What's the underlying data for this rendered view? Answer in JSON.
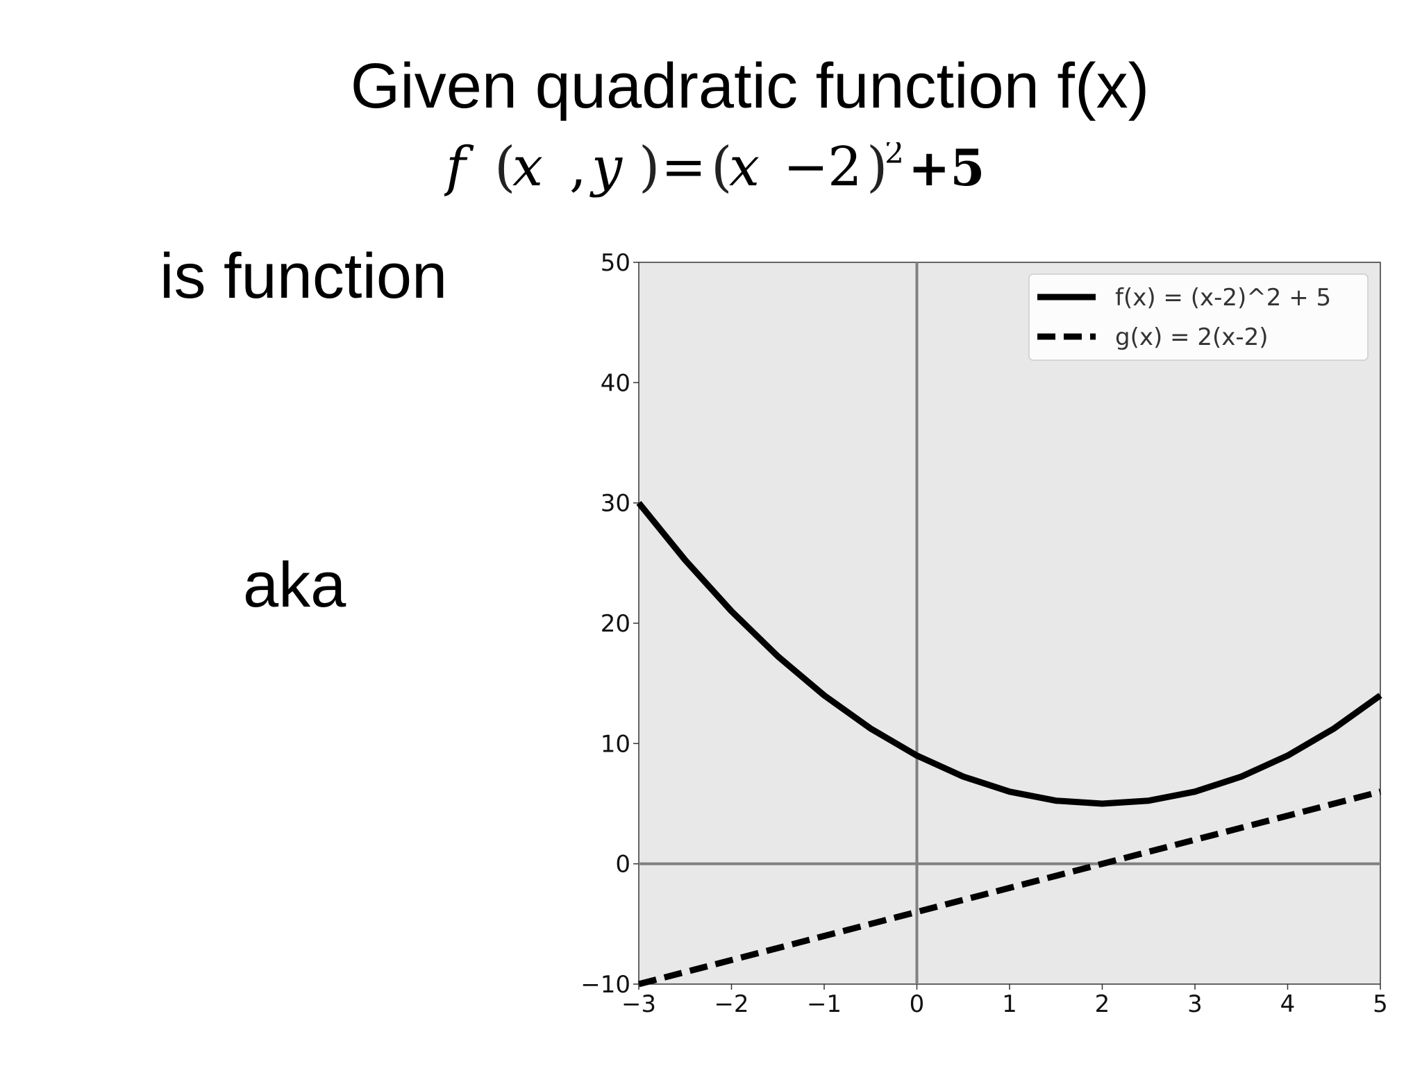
{
  "slide": {
    "title": "Given quadratic function f(x)",
    "equation": {
      "f": "f",
      "lparen1": "(",
      "x1": "x",
      "comma": ",",
      "y": "y",
      "rparen1": ")",
      "equals": "=",
      "lparen2": "(",
      "x2": "x",
      "minus": "−",
      "two": "2",
      "rparen2": ")",
      "exponent": "2",
      "plus_five": "+5"
    },
    "left_text_1": "is function",
    "left_text_2": "aka"
  },
  "chart_data": {
    "type": "line",
    "title": "",
    "xlabel": "",
    "ylabel": "",
    "xlim": [
      -3,
      5
    ],
    "ylim": [
      -10,
      50
    ],
    "x_ticks": [
      -3,
      -2,
      -1,
      0,
      1,
      2,
      3,
      4,
      5
    ],
    "x_tick_labels": [
      "−3",
      "−2",
      "−1",
      "0",
      "1",
      "2",
      "3",
      "4",
      "5"
    ],
    "y_ticks": [
      -10,
      0,
      10,
      20,
      30,
      40,
      50
    ],
    "y_tick_labels": [
      "−10",
      "0",
      "10",
      "20",
      "30",
      "40",
      "50"
    ],
    "grid": false,
    "background_color": "#e8e8e8",
    "zero_axes_color": "#808080",
    "legend_position": "top-right",
    "series": [
      {
        "name": "f(x) = (x-2)^2 + 5",
        "style": "solid",
        "color": "#000000",
        "x": [
          -3,
          -2.5,
          -2,
          -1.5,
          -1,
          -0.5,
          0,
          0.5,
          1,
          1.5,
          2,
          2.5,
          3,
          3.5,
          4,
          4.5,
          5
        ],
        "y": [
          30,
          25.25,
          21,
          17.25,
          14,
          11.25,
          9,
          7.25,
          6,
          5.25,
          5,
          5.25,
          6,
          7.25,
          9,
          11.25,
          14
        ]
      },
      {
        "name": "g(x) = 2(x-2)",
        "style": "dashed",
        "color": "#000000",
        "x": [
          -3,
          5
        ],
        "y": [
          -10,
          6
        ]
      }
    ]
  }
}
